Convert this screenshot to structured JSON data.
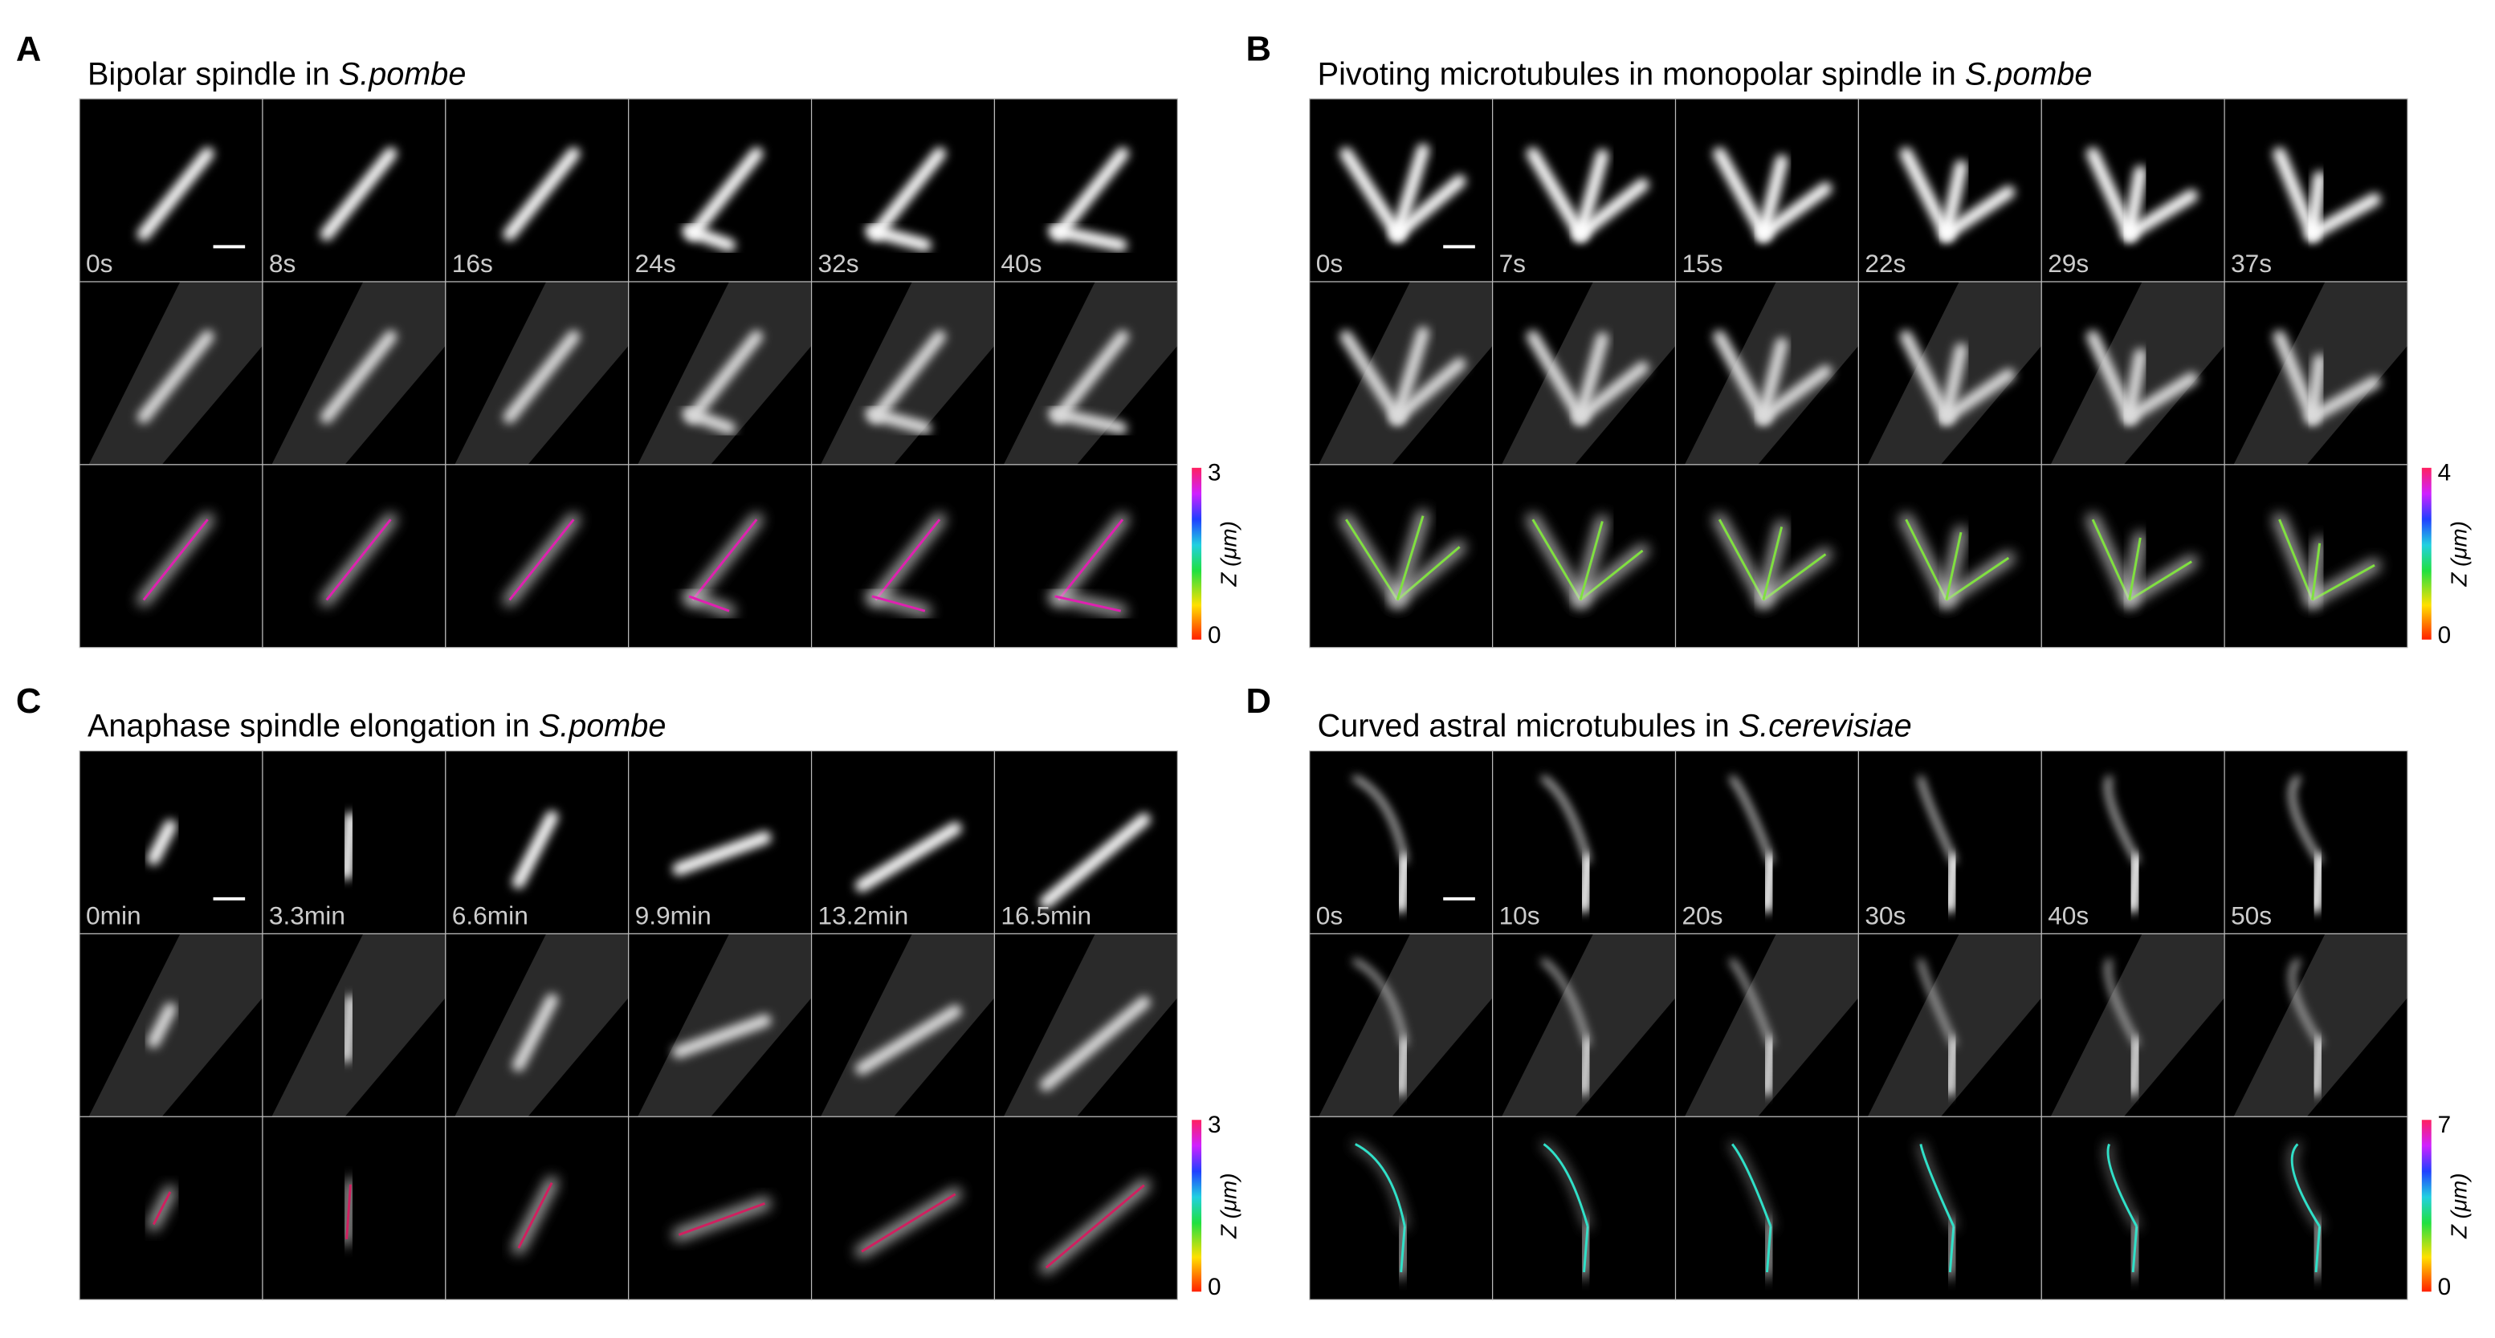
{
  "panels": [
    {
      "letter": "A",
      "title": "Bipolar spindle in",
      "species": "S.pombe",
      "time_labels": [
        "0s",
        "8s",
        "16s",
        "24s",
        "32s",
        "40s"
      ],
      "colorbar": {
        "max": "3",
        "min": "0",
        "label": "Z (μm)"
      }
    },
    {
      "letter": "B",
      "title": "Pivoting microtubules in monopolar spindle in",
      "species": "S.pombe",
      "time_labels": [
        "0s",
        "7s",
        "15s",
        "22s",
        "29s",
        "37s"
      ],
      "colorbar": {
        "max": "4",
        "min": "0",
        "label": "Z (μm)"
      }
    },
    {
      "letter": "C",
      "title": "Anaphase spindle elongation in",
      "species": "S.pombe",
      "time_labels": [
        "0min",
        "3.3min",
        "6.6min",
        "9.9min",
        "13.2min",
        "16.5min"
      ],
      "colorbar": {
        "max": "3",
        "min": "0",
        "label": "Z (μm)"
      }
    },
    {
      "letter": "D",
      "title": "Curved astral microtubules in",
      "species": "S.cerevisiae",
      "time_labels": [
        "0s",
        "10s",
        "20s",
        "30s",
        "40s",
        "50s"
      ],
      "colorbar": {
        "max": "7",
        "min": "0",
        "label": "Z (μm)"
      }
    }
  ]
}
